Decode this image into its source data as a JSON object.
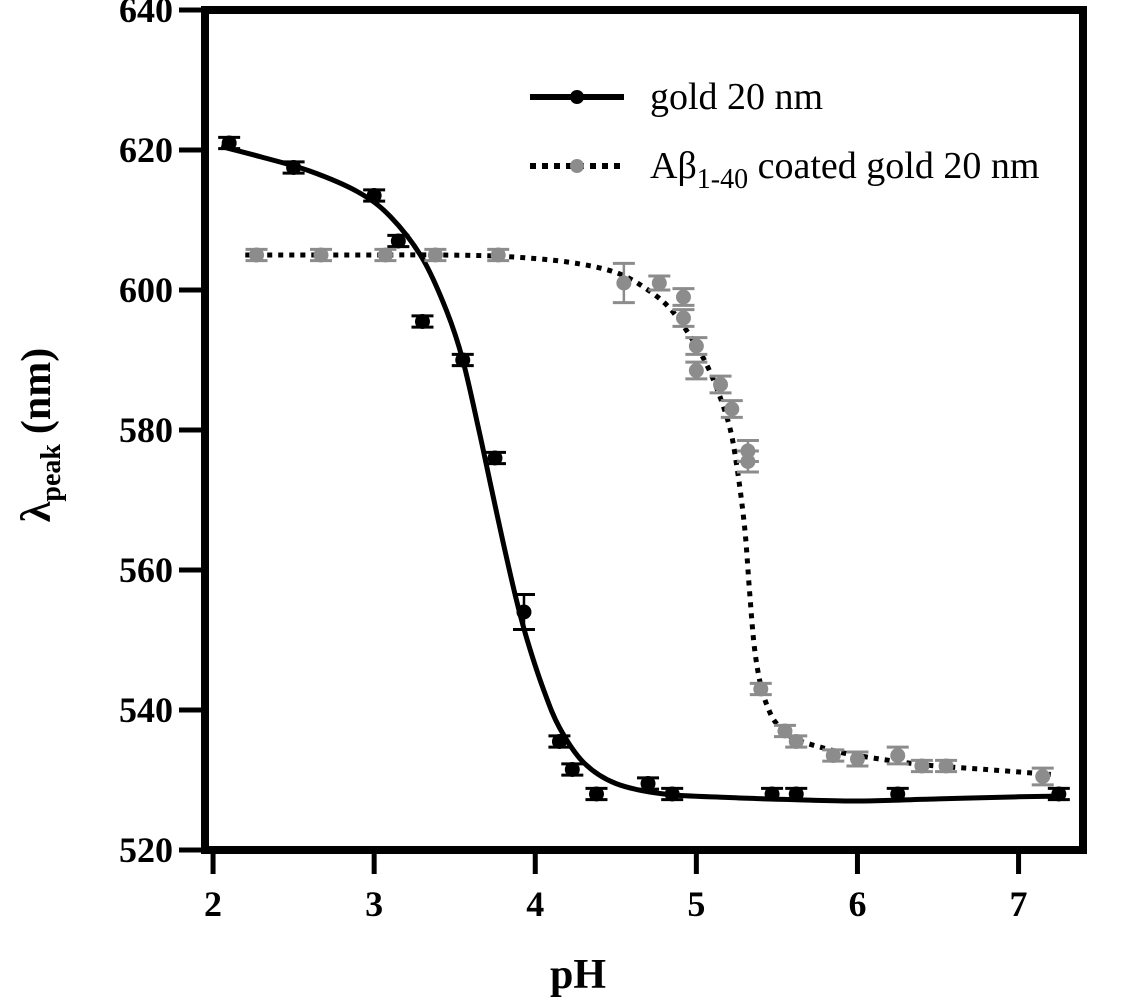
{
  "chart_data": {
    "type": "scatter",
    "title": "",
    "xlabel": "pH",
    "ylabel": {
      "main": "λ",
      "sub": "peak",
      "unit": "(nm)"
    },
    "xlim": [
      1.95,
      7.4
    ],
    "ylim": [
      520,
      640
    ],
    "x_ticks": [
      2,
      3,
      4,
      5,
      6,
      7
    ],
    "y_ticks": [
      520,
      540,
      560,
      580,
      600,
      620,
      640
    ],
    "grid": false,
    "legend_position": "top-right",
    "series": [
      {
        "name": "gold 20 nm",
        "legend_label": "gold 20 nm",
        "marker_color": "#000000",
        "line_style": "solid",
        "points": [
          {
            "x": 2.1,
            "y": 621.0,
            "err": 0.8
          },
          {
            "x": 2.5,
            "y": 617.5,
            "err": 0.8
          },
          {
            "x": 3.0,
            "y": 613.5,
            "err": 0.8
          },
          {
            "x": 3.15,
            "y": 607.0,
            "err": 0.8
          },
          {
            "x": 3.3,
            "y": 595.5,
            "err": 0.8
          },
          {
            "x": 3.55,
            "y": 590.0,
            "err": 0.8
          },
          {
            "x": 3.75,
            "y": 576.0,
            "err": 0.8
          },
          {
            "x": 3.93,
            "y": 554.0,
            "err": 2.5
          },
          {
            "x": 4.15,
            "y": 535.5,
            "err": 0.8
          },
          {
            "x": 4.23,
            "y": 531.5,
            "err": 0.8
          },
          {
            "x": 4.38,
            "y": 528.0,
            "err": 0.8
          },
          {
            "x": 4.7,
            "y": 529.5,
            "err": 0.8
          },
          {
            "x": 4.85,
            "y": 528.0,
            "err": 0.8
          },
          {
            "x": 5.47,
            "y": 528.0,
            "err": 0.8
          },
          {
            "x": 5.62,
            "y": 528.0,
            "err": 0.8
          },
          {
            "x": 6.25,
            "y": 528.0,
            "err": 0.8
          },
          {
            "x": 7.25,
            "y": 528.0,
            "err": 0.8
          }
        ],
        "fit": {
          "x": [
            2.05,
            2.3,
            2.6,
            2.9,
            3.1,
            3.3,
            3.45,
            3.55,
            3.65,
            3.72,
            3.8,
            3.88,
            3.95,
            4.05,
            4.15,
            4.3,
            4.5,
            4.8,
            5.2,
            5.6,
            6.0,
            6.5,
            7.0,
            7.25
          ],
          "y": [
            620.5,
            619.0,
            617.0,
            614.0,
            610.5,
            604.5,
            597.0,
            590.0,
            580.0,
            572.5,
            564.0,
            556.0,
            550.0,
            543.0,
            537.5,
            532.5,
            529.5,
            528.0,
            527.5,
            527.2,
            527.0,
            527.3,
            527.6,
            527.7
          ]
        }
      },
      {
        "name": "Aβ1-40 coated gold 20 nm",
        "legend_label": "Aβ",
        "legend_sub": "1-40",
        "legend_suffix": " coated gold 20 nm",
        "marker_color": "#8c8c8c",
        "line_style": "dotted",
        "points": [
          {
            "x": 2.27,
            "y": 605.0,
            "err": 0.8
          },
          {
            "x": 2.67,
            "y": 605.0,
            "err": 0.8
          },
          {
            "x": 3.07,
            "y": 605.0,
            "err": 0.8
          },
          {
            "x": 3.38,
            "y": 605.0,
            "err": 0.8
          },
          {
            "x": 3.77,
            "y": 605.0,
            "err": 0.8
          },
          {
            "x": 4.55,
            "y": 601.0,
            "err": 2.8
          },
          {
            "x": 4.77,
            "y": 601.0,
            "err": 1.0
          },
          {
            "x": 4.92,
            "y": 599.0,
            "err": 1.2
          },
          {
            "x": 4.92,
            "y": 596.0,
            "err": 1.2
          },
          {
            "x": 5.0,
            "y": 592.0,
            "err": 1.2
          },
          {
            "x": 5.0,
            "y": 588.5,
            "err": 1.2
          },
          {
            "x": 5.15,
            "y": 586.5,
            "err": 1.2
          },
          {
            "x": 5.22,
            "y": 583.0,
            "err": 1.2
          },
          {
            "x": 5.32,
            "y": 577.0,
            "err": 1.5
          },
          {
            "x": 5.32,
            "y": 575.5,
            "err": 1.5
          },
          {
            "x": 5.4,
            "y": 543.0,
            "err": 0.8
          },
          {
            "x": 5.55,
            "y": 537.0,
            "err": 0.8
          },
          {
            "x": 5.62,
            "y": 535.5,
            "err": 0.8
          },
          {
            "x": 5.85,
            "y": 533.5,
            "err": 0.8
          },
          {
            "x": 6.0,
            "y": 533.0,
            "err": 1.0
          },
          {
            "x": 6.25,
            "y": 533.5,
            "err": 1.2
          },
          {
            "x": 6.4,
            "y": 532.0,
            "err": 0.8
          },
          {
            "x": 6.55,
            "y": 532.0,
            "err": 0.8
          },
          {
            "x": 7.15,
            "y": 530.5,
            "err": 1.2
          }
        ],
        "fit": {
          "x": [
            2.2,
            2.6,
            3.0,
            3.4,
            3.8,
            4.2,
            4.5,
            4.7,
            4.85,
            5.0,
            5.1,
            5.2,
            5.25,
            5.3,
            5.33,
            5.36,
            5.4,
            5.45,
            5.5,
            5.6,
            5.8,
            6.0,
            6.4,
            6.8,
            7.2
          ],
          "y": [
            605.0,
            605.0,
            605.0,
            605.0,
            604.8,
            604.0,
            602.5,
            600.0,
            597.0,
            592.0,
            587.5,
            581.0,
            575.0,
            566.0,
            557.0,
            549.0,
            543.5,
            540.0,
            538.0,
            536.0,
            534.5,
            533.5,
            532.2,
            531.5,
            530.8
          ]
        }
      }
    ]
  }
}
